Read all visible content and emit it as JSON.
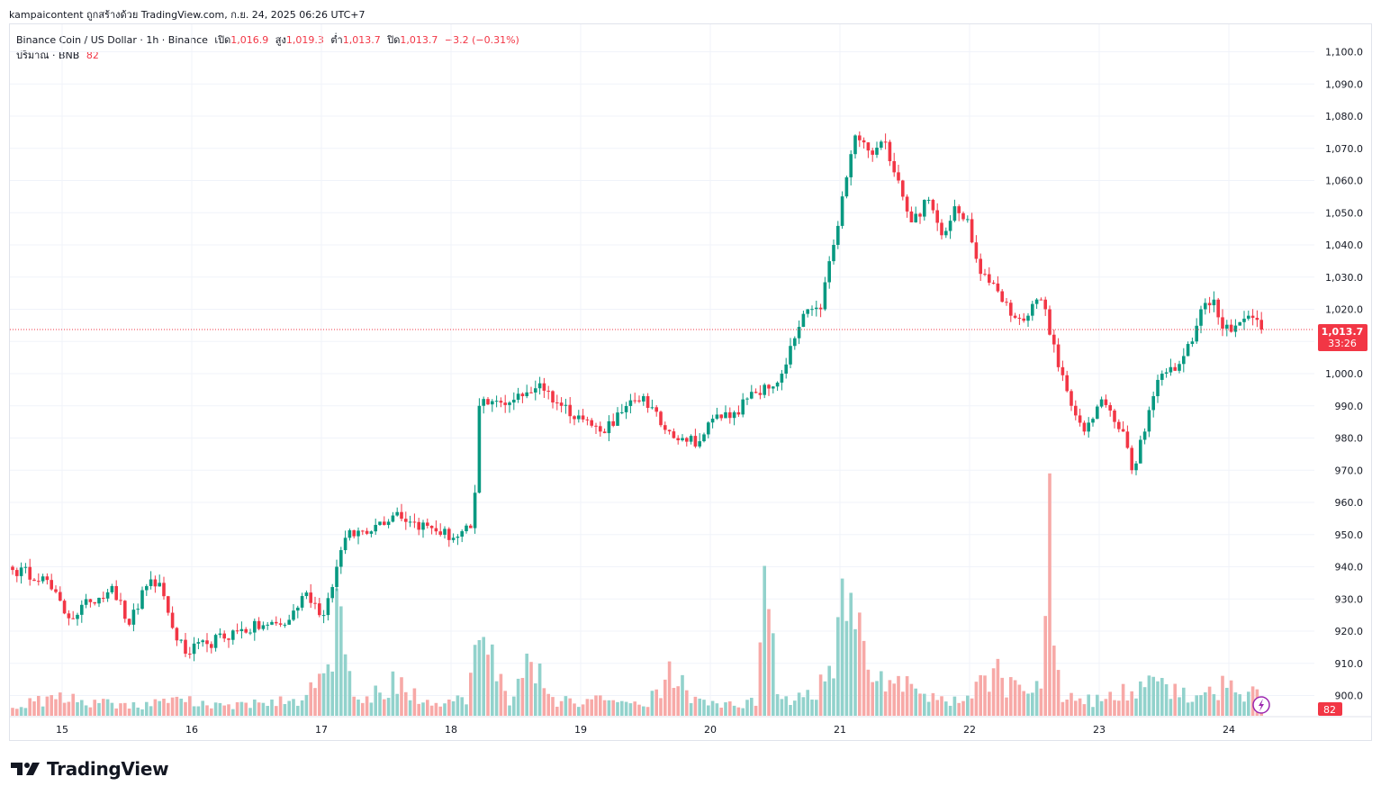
{
  "header": {
    "attribution": "kampaicontent ถูกสร้างด้วย TradingView.com, ก.ย. 24, 2025 06:26 UTC+7"
  },
  "legend": {
    "symbol": "Binance Coin / US Dollar · 1h · Binance",
    "open_label": "เปิด",
    "open_value": "1,016.9",
    "high_label": "สูง",
    "high_value": "1,019.3",
    "low_label": "ต่ำ",
    "low_value": "1,013.7",
    "close_label": "ปิด",
    "close_value": "1,013.7",
    "change": "−3.2 (−0.31%)",
    "volume_label": "ปริมาณ · BNB",
    "volume_value": "82"
  },
  "price_tag": {
    "price": "1,013.7",
    "countdown": "33:26"
  },
  "volume_tag": "82",
  "brand": {
    "name": "TradingView",
    "logo_icon": "tradingview-logo-icon"
  },
  "colors": {
    "up": "#089981",
    "down": "#f23645",
    "vol_up": "#92d2cc",
    "vol_down": "#f7a9a7"
  },
  "chart_data": {
    "type": "candlestick",
    "symbol": "BNB/USD",
    "interval": "1h",
    "x_tick_labels": [
      "15",
      "16",
      "17",
      "18",
      "19",
      "20",
      "21",
      "22",
      "23",
      "24"
    ],
    "y_tick_labels": [
      "1,100.0",
      "1,090.0",
      "1,080.0",
      "1,070.0",
      "1,060.0",
      "1,050.0",
      "1,040.0",
      "1,030.0",
      "1,020.0",
      "1,010.0",
      "1,000.0",
      "990.0",
      "980.0",
      "970.0",
      "960.0",
      "950.0",
      "940.0",
      "930.0",
      "920.0",
      "910.0",
      "900.0"
    ],
    "y_range": [
      896,
      1103
    ],
    "grid": true,
    "last_price": 1013.7,
    "anchors": [
      [
        0,
        939
      ],
      [
        7,
        937
      ],
      [
        13,
        924
      ],
      [
        18,
        929
      ],
      [
        23,
        934
      ],
      [
        27,
        922
      ],
      [
        31,
        934
      ],
      [
        34,
        935
      ],
      [
        37,
        921
      ],
      [
        40,
        913
      ],
      [
        45,
        916
      ],
      [
        52,
        920
      ],
      [
        59,
        922
      ],
      [
        63,
        922
      ],
      [
        68,
        932
      ],
      [
        72,
        925
      ],
      [
        75,
        940
      ],
      [
        77,
        949
      ],
      [
        84,
        953
      ],
      [
        89,
        957
      ],
      [
        92,
        954
      ],
      [
        97,
        952
      ],
      [
        102,
        949
      ],
      [
        106,
        952
      ],
      [
        107,
        963
      ],
      [
        108,
        990
      ],
      [
        113,
        991
      ],
      [
        118,
        993
      ],
      [
        122,
        997
      ],
      [
        126,
        991
      ],
      [
        131,
        987
      ],
      [
        136,
        982
      ],
      [
        141,
        988
      ],
      [
        146,
        993
      ],
      [
        150,
        984
      ],
      [
        155,
        980
      ],
      [
        159,
        979
      ],
      [
        162,
        986
      ],
      [
        167,
        988
      ],
      [
        172,
        994
      ],
      [
        176,
        996
      ],
      [
        178,
        1000
      ],
      [
        181,
        1011
      ],
      [
        184,
        1020
      ],
      [
        187,
        1020
      ],
      [
        190,
        1040
      ],
      [
        193,
        1061
      ],
      [
        195,
        1074
      ],
      [
        199,
        1068
      ],
      [
        202,
        1072
      ],
      [
        205,
        1060
      ],
      [
        208,
        1047
      ],
      [
        212,
        1054
      ],
      [
        215,
        1043
      ],
      [
        218,
        1052
      ],
      [
        221,
        1048
      ],
      [
        224,
        1031
      ],
      [
        227,
        1028
      ],
      [
        231,
        1018
      ],
      [
        235,
        1018
      ],
      [
        238,
        1023
      ],
      [
        239,
        1020
      ],
      [
        242,
        1002
      ],
      [
        245,
        990
      ],
      [
        248,
        982
      ],
      [
        252,
        992
      ],
      [
        255,
        985
      ],
      [
        257,
        982
      ],
      [
        259,
        970
      ],
      [
        262,
        982
      ],
      [
        264,
        993
      ],
      [
        266,
        1000
      ],
      [
        270,
        1003
      ],
      [
        273,
        1010
      ],
      [
        275,
        1020
      ],
      [
        278,
        1023
      ],
      [
        280,
        1014
      ],
      [
        282,
        1013
      ],
      [
        284,
        1016
      ],
      [
        286,
        1018
      ],
      [
        289,
        1013.7
      ]
    ],
    "volume_anchors": [
      [
        0,
        3
      ],
      [
        10,
        5
      ],
      [
        16,
        4
      ],
      [
        30,
        3
      ],
      [
        40,
        4
      ],
      [
        50,
        3
      ],
      [
        65,
        4
      ],
      [
        73,
        10
      ],
      [
        75,
        30
      ],
      [
        80,
        4
      ],
      [
        88,
        9
      ],
      [
        95,
        4
      ],
      [
        105,
        4
      ],
      [
        108,
        22
      ],
      [
        115,
        4
      ],
      [
        120,
        19
      ],
      [
        125,
        4
      ],
      [
        135,
        4
      ],
      [
        147,
        4
      ],
      [
        152,
        12
      ],
      [
        158,
        4
      ],
      [
        165,
        3
      ],
      [
        172,
        4
      ],
      [
        174,
        31
      ],
      [
        178,
        4
      ],
      [
        186,
        6
      ],
      [
        189,
        14
      ],
      [
        193,
        32
      ],
      [
        195,
        32
      ],
      [
        198,
        10
      ],
      [
        205,
        12
      ],
      [
        212,
        5
      ],
      [
        220,
        5
      ],
      [
        227,
        12
      ],
      [
        233,
        6
      ],
      [
        238,
        8
      ],
      [
        240,
        48
      ],
      [
        243,
        5
      ],
      [
        252,
        4
      ],
      [
        260,
        8
      ],
      [
        265,
        8
      ],
      [
        272,
        5
      ],
      [
        280,
        8
      ],
      [
        289,
        5
      ]
    ]
  }
}
